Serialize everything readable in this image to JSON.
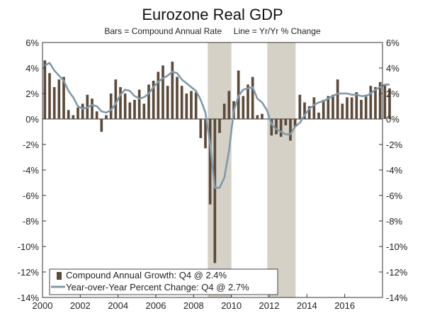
{
  "chart_data": {
    "type": "bar+line",
    "title": "Eurozone Real GDP",
    "subtitle": "Bars = Compound Annual Rate     Line = Yr/Yr % Change",
    "xlim": [
      2000,
      2018
    ],
    "ylim": [
      -14,
      6
    ],
    "y_ticks": [
      6,
      4,
      2,
      0,
      -2,
      -4,
      -6,
      -8,
      -10,
      -12,
      -14
    ],
    "y_tick_labels": [
      "6%",
      "4%",
      "2%",
      "0%",
      "-2%",
      "-4%",
      "-6%",
      "-8%",
      "-10%",
      "-12%",
      "-14%"
    ],
    "x_tick_labels": [
      "2000",
      "2002",
      "2004",
      "2006",
      "2008",
      "2010",
      "2012",
      "2014",
      "2016"
    ],
    "x_ticks": [
      2000,
      2002,
      2004,
      2006,
      2008,
      2010,
      2012,
      2014,
      2016
    ],
    "quarters_start": 2000,
    "recessions": [
      [
        2008.75,
        2010.0
      ],
      [
        2011.9,
        2013.4
      ]
    ],
    "colors": {
      "bars": "#5b4a3a",
      "line": "#7f9aab",
      "shade": "#d5d1c7"
    },
    "legend": {
      "position": "bottom-left",
      "bars": "Compound Annual Growth: Q4 @ 2.4%",
      "line": "Year-over-Year Percent Change: Q4 @ 2.7%"
    },
    "series": [
      {
        "name": "Compound Annual Growth",
        "kind": "bar",
        "values": [
          4.6,
          3.6,
          2.5,
          3.1,
          3.3,
          0.7,
          0.3,
          0.9,
          1.2,
          1.9,
          1.6,
          0.6,
          -1.0,
          0.3,
          2.0,
          3.1,
          2.5,
          2.0,
          1.3,
          1.5,
          2.3,
          1.2,
          2.7,
          3.0,
          3.7,
          4.2,
          2.6,
          4.5,
          3.3,
          2.6,
          2.0,
          2.2,
          2.1,
          -1.5,
          -2.3,
          -6.7,
          -11.3,
          -1.1,
          1.2,
          2.2,
          1.4,
          3.8,
          1.8,
          2.7,
          3.3,
          0.3,
          0.4,
          0.0,
          -1.3,
          -1.2,
          -1.4,
          -0.5,
          -1.7,
          -0.6,
          1.9,
          1.3,
          1.0,
          1.7,
          0.5,
          1.5,
          1.8,
          1.9,
          3.1,
          1.2,
          1.7,
          1.7,
          2.1,
          1.5,
          1.9,
          2.6,
          2.5,
          2.9,
          2.7,
          2.4
        ]
      },
      {
        "name": "Year-over-Year Percent Change",
        "kind": "line",
        "values": [
          4.2,
          4.4,
          3.8,
          3.4,
          3.0,
          2.2,
          1.7,
          1.0,
          0.8,
          0.9,
          1.1,
          1.0,
          0.6,
          0.5,
          0.7,
          1.2,
          1.9,
          2.3,
          2.2,
          1.8,
          1.6,
          1.7,
          2.0,
          2.5,
          2.9,
          3.2,
          3.4,
          3.7,
          3.6,
          3.1,
          2.8,
          2.5,
          2.2,
          1.5,
          0.5,
          -2.0,
          -5.4,
          -5.4,
          -4.6,
          -2.5,
          0.6,
          1.8,
          2.3,
          2.4,
          2.5,
          1.6,
          1.3,
          0.7,
          -0.4,
          -0.8,
          -1.0,
          -1.2,
          -1.2,
          -0.6,
          -0.3,
          0.3,
          0.8,
          1.1,
          1.3,
          1.4,
          1.6,
          1.8,
          2.0,
          2.0,
          2.0,
          1.9,
          1.9,
          1.8,
          1.8,
          2.0,
          2.3,
          2.5,
          2.7,
          2.7
        ]
      }
    ]
  }
}
